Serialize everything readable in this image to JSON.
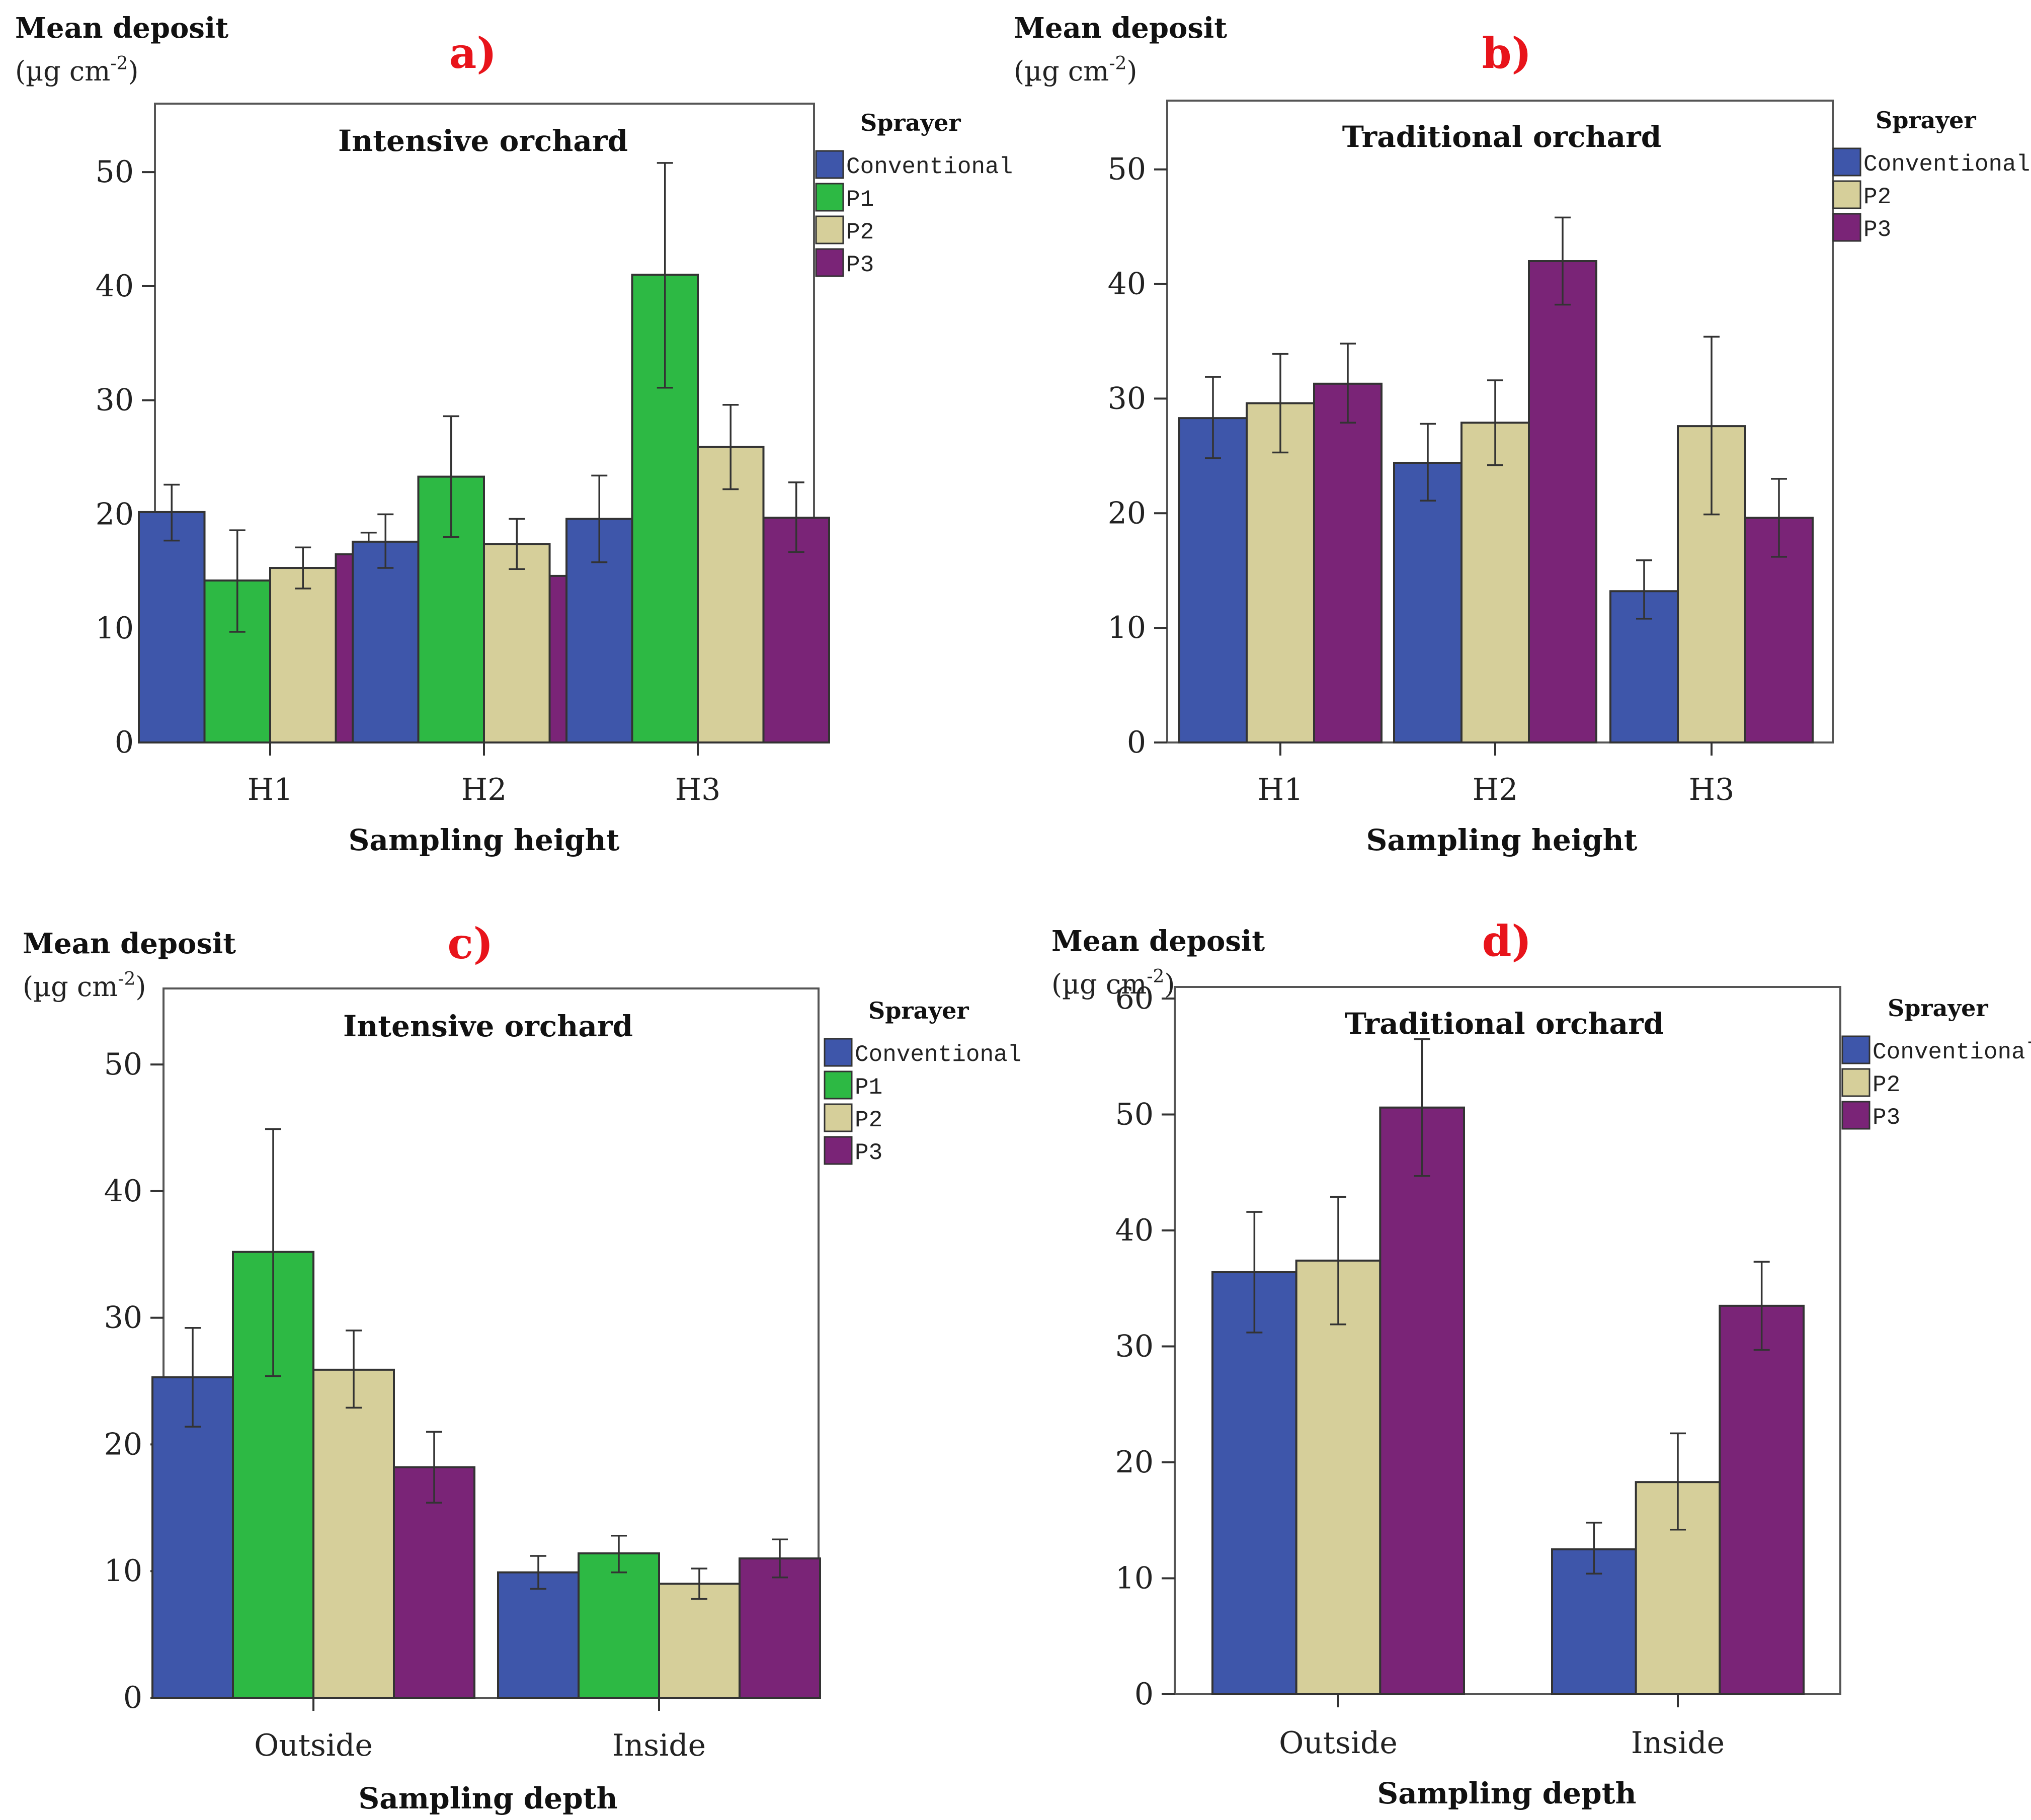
{
  "figure": {
    "colors": {
      "Conventional": "#3E56AA",
      "P1": "#2DB944",
      "P2": "#D6CF9A",
      "P3": "#7A2477",
      "label_red": "#E8141B"
    }
  },
  "chart_data": [
    {
      "panel": "a)",
      "type": "bar",
      "title": "Intensive orchard",
      "ylabel": "Mean deposit",
      "yunit": "(µg cm",
      "yunit_exp": "-2",
      "yunit_close": ")",
      "xlabel": "Sampling height",
      "legend_title": "Sprayer",
      "legend_position": "right",
      "grid": false,
      "ylim": [
        0,
        56
      ],
      "yticks": [
        0,
        10,
        20,
        30,
        40,
        50
      ],
      "categories": [
        "H1",
        "H2",
        "H3"
      ],
      "series": [
        {
          "name": "Conventional",
          "values": [
            20.2,
            17.6,
            19.6
          ],
          "err_low": [
            17.7,
            15.3,
            15.8
          ],
          "err_high": [
            22.6,
            20.0,
            23.4
          ]
        },
        {
          "name": "P1",
          "values": [
            14.2,
            23.3,
            41.0
          ],
          "err_low": [
            9.7,
            18.0,
            31.1
          ],
          "err_high": [
            18.6,
            28.6,
            50.8
          ]
        },
        {
          "name": "P2",
          "values": [
            15.3,
            17.4,
            25.9
          ],
          "err_low": [
            13.5,
            15.2,
            22.2
          ],
          "err_high": [
            17.1,
            19.6,
            29.6
          ]
        },
        {
          "name": "P3",
          "values": [
            16.5,
            14.6,
            19.7
          ],
          "err_low": [
            14.6,
            12.9,
            16.7
          ],
          "err_high": [
            18.4,
            16.3,
            22.8
          ]
        }
      ]
    },
    {
      "panel": "b)",
      "type": "bar",
      "title": "Traditional orchard",
      "ylabel": "Mean deposit",
      "yunit": "(µg cm",
      "yunit_exp": "-2",
      "yunit_close": ")",
      "xlabel": "Sampling height",
      "legend_title": "Sprayer",
      "legend_position": "right",
      "grid": false,
      "ylim": [
        0,
        56
      ],
      "yticks": [
        0,
        10,
        20,
        30,
        40,
        50
      ],
      "categories": [
        "H1",
        "H2",
        "H3"
      ],
      "series": [
        {
          "name": "Conventional",
          "values": [
            28.3,
            24.4,
            13.2
          ],
          "err_low": [
            24.8,
            21.1,
            10.8
          ],
          "err_high": [
            31.9,
            27.8,
            15.9
          ]
        },
        {
          "name": "P2",
          "values": [
            29.6,
            27.9,
            27.6
          ],
          "err_low": [
            25.3,
            24.2,
            19.9
          ],
          "err_high": [
            33.9,
            31.6,
            35.4
          ]
        },
        {
          "name": "P3",
          "values": [
            31.3,
            42.0,
            19.6
          ],
          "err_low": [
            27.9,
            38.2,
            16.2
          ],
          "err_high": [
            34.8,
            45.8,
            23.0
          ]
        }
      ]
    },
    {
      "panel": "c)",
      "type": "bar",
      "title": "Intensive orchard",
      "ylabel": "Mean deposit",
      "yunit": "(µg cm",
      "yunit_exp": "-2",
      "yunit_close": ")",
      "xlabel": "Sampling depth",
      "legend_title": "Sprayer",
      "legend_position": "right",
      "grid": false,
      "ylim": [
        0,
        56
      ],
      "yticks": [
        0,
        10,
        20,
        30,
        40,
        50
      ],
      "categories": [
        "Outside",
        "Inside"
      ],
      "series": [
        {
          "name": "Conventional",
          "values": [
            25.3,
            9.9
          ],
          "err_low": [
            21.4,
            8.6
          ],
          "err_high": [
            29.2,
            11.2
          ]
        },
        {
          "name": "P1",
          "values": [
            35.2,
            11.4
          ],
          "err_low": [
            25.4,
            9.9
          ],
          "err_high": [
            44.9,
            12.8
          ]
        },
        {
          "name": "P2",
          "values": [
            25.9,
            9.0
          ],
          "err_low": [
            22.9,
            7.8
          ],
          "err_high": [
            29.0,
            10.2
          ]
        },
        {
          "name": "P3",
          "values": [
            18.2,
            11.0
          ],
          "err_low": [
            15.4,
            9.5
          ],
          "err_high": [
            21.0,
            12.5
          ]
        }
      ]
    },
    {
      "panel": "d)",
      "type": "bar",
      "title": "Traditional orchard",
      "ylabel": "Mean deposit",
      "yunit": "(µg cm",
      "yunit_exp": "-2",
      "yunit_close": ")",
      "xlabel": "Sampling depth",
      "legend_title": "Sprayer",
      "legend_position": "right",
      "grid": false,
      "ylim": [
        0,
        61
      ],
      "yticks": [
        0,
        10,
        20,
        30,
        40,
        50,
        60
      ],
      "categories": [
        "Outside",
        "Inside"
      ],
      "series": [
        {
          "name": "Conventional",
          "values": [
            36.4,
            12.5
          ],
          "err_low": [
            31.2,
            10.4
          ],
          "err_high": [
            41.6,
            14.8
          ]
        },
        {
          "name": "P2",
          "values": [
            37.4,
            18.3
          ],
          "err_low": [
            31.9,
            14.2
          ],
          "err_high": [
            42.9,
            22.5
          ]
        },
        {
          "name": "P3",
          "values": [
            50.6,
            33.5
          ],
          "err_low": [
            44.7,
            29.7
          ],
          "err_high": [
            56.5,
            37.3
          ]
        }
      ]
    }
  ]
}
